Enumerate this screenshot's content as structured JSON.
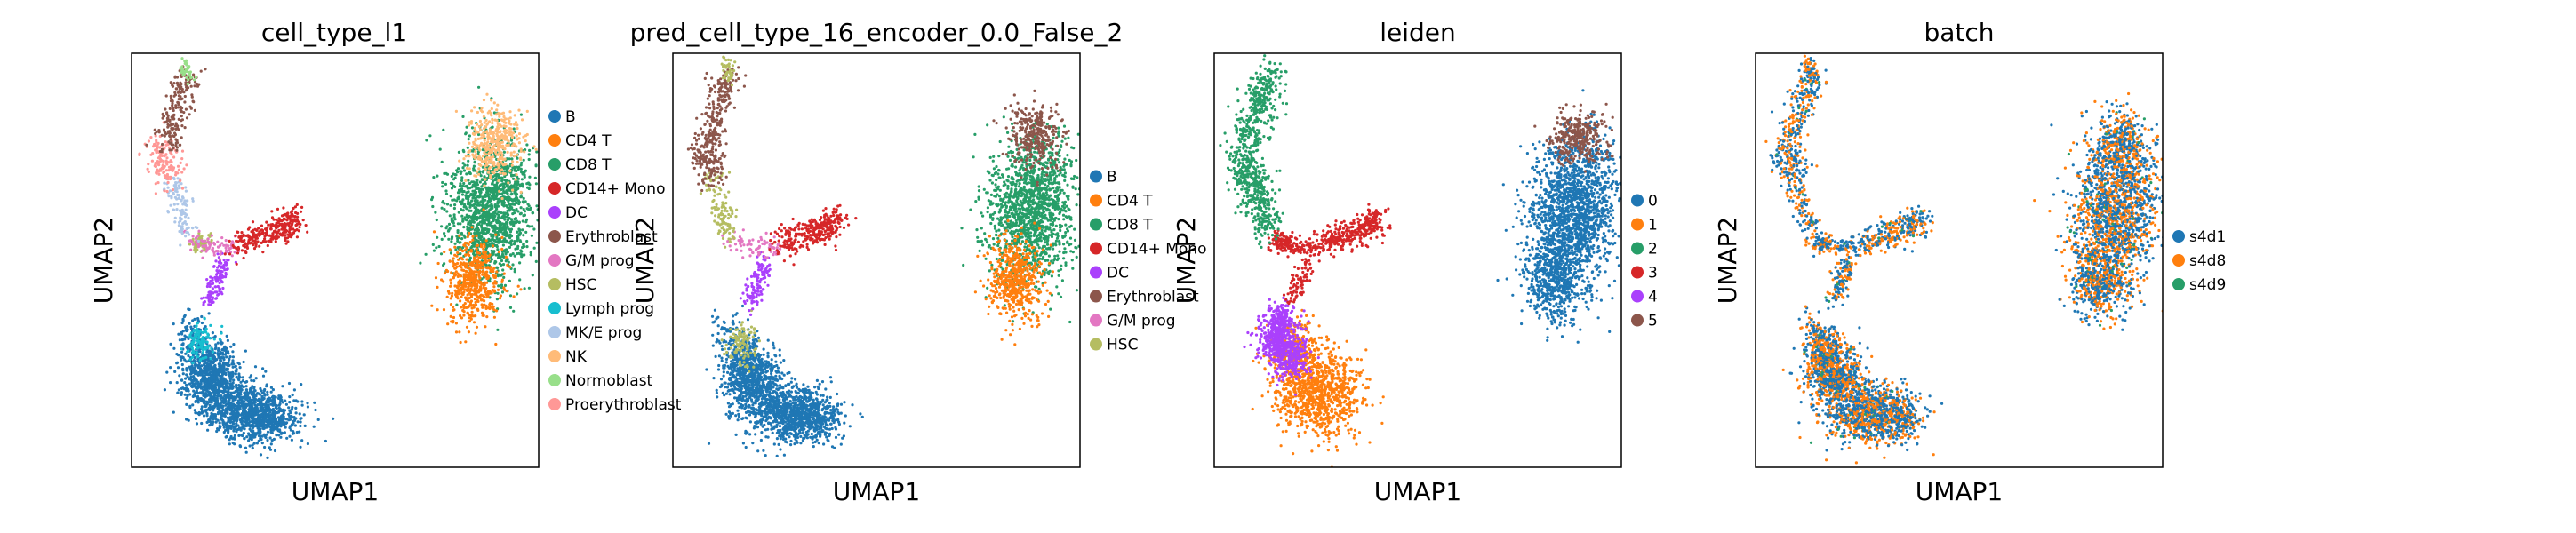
{
  "chart_data": [
    {
      "type": "scatter",
      "title": "cell_type_l1",
      "xlabel": "UMAP1",
      "ylabel": "UMAP2",
      "grid": false,
      "legend_position": "right-outside",
      "legend": [
        {
          "name": "B",
          "color": "#1f77b4"
        },
        {
          "name": "CD4 T",
          "color": "#ff7f0e"
        },
        {
          "name": "CD8 T",
          "color": "#279e68"
        },
        {
          "name": "CD14+ Mono",
          "color": "#d62728"
        },
        {
          "name": "DC",
          "color": "#aa40fc"
        },
        {
          "name": "Erythroblast",
          "color": "#8c564b"
        },
        {
          "name": "G/M prog",
          "color": "#e377c2"
        },
        {
          "name": "HSC",
          "color": "#b5bd61"
        },
        {
          "name": "Lymph prog",
          "color": "#17becf"
        },
        {
          "name": "MK/E prog",
          "color": "#aec7e8"
        },
        {
          "name": "NK",
          "color": "#ffbb78"
        },
        {
          "name": "Normoblast",
          "color": "#98df8a"
        },
        {
          "name": "Proerythroblast",
          "color": "#ff9896"
        }
      ]
    },
    {
      "type": "scatter",
      "title": "pred_cell_type_16_encoder_0.0_False_2",
      "xlabel": "UMAP1",
      "ylabel": "UMAP2",
      "grid": false,
      "legend_position": "right-outside",
      "legend": [
        {
          "name": "B",
          "color": "#1f77b4"
        },
        {
          "name": "CD4 T",
          "color": "#ff7f0e"
        },
        {
          "name": "CD8 T",
          "color": "#279e68"
        },
        {
          "name": "CD14+ Mono",
          "color": "#d62728"
        },
        {
          "name": "DC",
          "color": "#aa40fc"
        },
        {
          "name": "Erythroblast",
          "color": "#8c564b"
        },
        {
          "name": "G/M prog",
          "color": "#e377c2"
        },
        {
          "name": "HSC",
          "color": "#b5bd61"
        }
      ]
    },
    {
      "type": "scatter",
      "title": "leiden",
      "xlabel": "UMAP1",
      "ylabel": "UMAP2",
      "grid": false,
      "legend_position": "right-outside",
      "legend": [
        {
          "name": "0",
          "color": "#1f77b4"
        },
        {
          "name": "1",
          "color": "#ff7f0e"
        },
        {
          "name": "2",
          "color": "#279e68"
        },
        {
          "name": "3",
          "color": "#d62728"
        },
        {
          "name": "4",
          "color": "#aa40fc"
        },
        {
          "name": "5",
          "color": "#8c564b"
        }
      ]
    },
    {
      "type": "scatter",
      "title": "batch",
      "xlabel": "UMAP1",
      "ylabel": "UMAP2",
      "grid": false,
      "legend_position": "right-outside",
      "legend": [
        {
          "name": "s4d1",
          "color": "#1f77b4"
        },
        {
          "name": "s4d8",
          "color": "#ff7f0e"
        },
        {
          "name": "s4d9",
          "color": "#279e68"
        }
      ]
    }
  ]
}
